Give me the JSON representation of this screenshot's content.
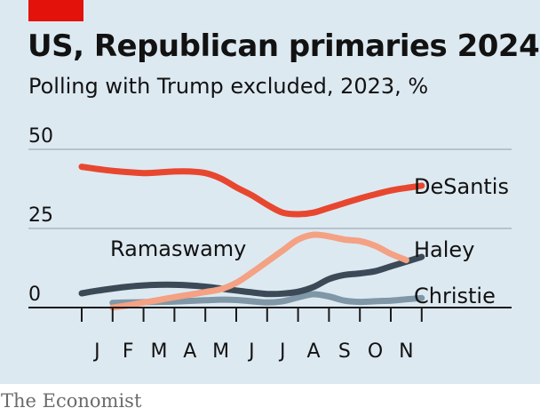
{
  "header": {
    "title": "US, Republican primaries 2024",
    "subtitle": "Polling with Trump excluded, 2023, %"
  },
  "source": "The Economist",
  "colors": {
    "background": "#dde9f1",
    "gridline": "#b7c3cc",
    "axis": "#1a1a1a",
    "desantis": "#e8472f",
    "haley": "#f4a184",
    "ramaswamy": "#3b4a56",
    "christie": "#7f97a6"
  },
  "chart_data": {
    "type": "line",
    "x": [
      0,
      0.5,
      1,
      1.5,
      2,
      2.5,
      3,
      3.5,
      4,
      4.5,
      5,
      5.5,
      6,
      6.5,
      7,
      7.5,
      8,
      8.5,
      9,
      9.5,
      10,
      10.5,
      11
    ],
    "categories": [
      "J",
      "F",
      "M",
      "A",
      "M",
      "J",
      "J",
      "A",
      "S",
      "O",
      "N"
    ],
    "ylim": [
      0,
      50
    ],
    "y_ticks": [
      0,
      25,
      50
    ],
    "grid": true,
    "legend": "direct labels at line ends",
    "series": [
      {
        "name": "DeSantis",
        "color": "#e8472f",
        "x": [
          0,
          0.5,
          1,
          1.5,
          2,
          2.5,
          3,
          3.5,
          4,
          4.5,
          5,
          5.5,
          6,
          6.5,
          7,
          7.5,
          8,
          8.5,
          9,
          9.5,
          10,
          10.5,
          11
        ],
        "values": [
          44.5,
          43.8,
          43.2,
          42.8,
          42.5,
          42.7,
          43,
          43,
          42.5,
          40.8,
          38,
          35.5,
          32.5,
          30,
          29.5,
          30,
          31.5,
          33,
          34.5,
          35.8,
          37,
          37.8,
          38.5
        ]
      },
      {
        "name": "Haley",
        "color": "#f4a184",
        "x": [
          1,
          1.5,
          2,
          2.5,
          3,
          3.5,
          4,
          4.5,
          5,
          5.5,
          6,
          6.5,
          7,
          7.5,
          8,
          8.5,
          9,
          9.5,
          10,
          10.5
        ],
        "values": [
          0,
          0.7,
          1.6,
          2.4,
          3.3,
          4.1,
          4.9,
          5.8,
          7.8,
          11,
          14.5,
          18,
          21.5,
          23,
          22.5,
          21.5,
          21,
          19.5,
          17,
          15
        ]
      },
      {
        "name": "Ramaswamy",
        "color": "#3b4a56",
        "x": [
          0,
          0.5,
          1,
          1.5,
          2,
          2.5,
          3,
          3.5,
          4,
          4.5,
          5,
          5.5,
          6,
          6.5,
          7,
          7.5,
          8,
          8.5,
          9,
          9.5,
          10,
          10.5,
          11
        ],
        "values": [
          4.5,
          5.3,
          6,
          6.6,
          7,
          7.2,
          7.2,
          7,
          6.6,
          6,
          5.4,
          4.8,
          4.3,
          4.4,
          5,
          6.5,
          9,
          10.3,
          10.8,
          11.5,
          13,
          14.5,
          16
        ]
      },
      {
        "name": "Christie",
        "color": "#7f97a6",
        "x": [
          1,
          1.5,
          2,
          2.5,
          3,
          3.5,
          4,
          4.5,
          5,
          5.5,
          6,
          6.5,
          7,
          7.5,
          8,
          8.5,
          9,
          9.5,
          10,
          10.5,
          11
        ],
        "values": [
          1.5,
          1.6,
          1.7,
          1.8,
          1.9,
          2.1,
          2.3,
          2.5,
          2.4,
          2,
          1.6,
          2,
          3.2,
          4.2,
          3.5,
          2.2,
          1.8,
          2,
          2.2,
          2.6,
          3
        ]
      }
    ]
  }
}
